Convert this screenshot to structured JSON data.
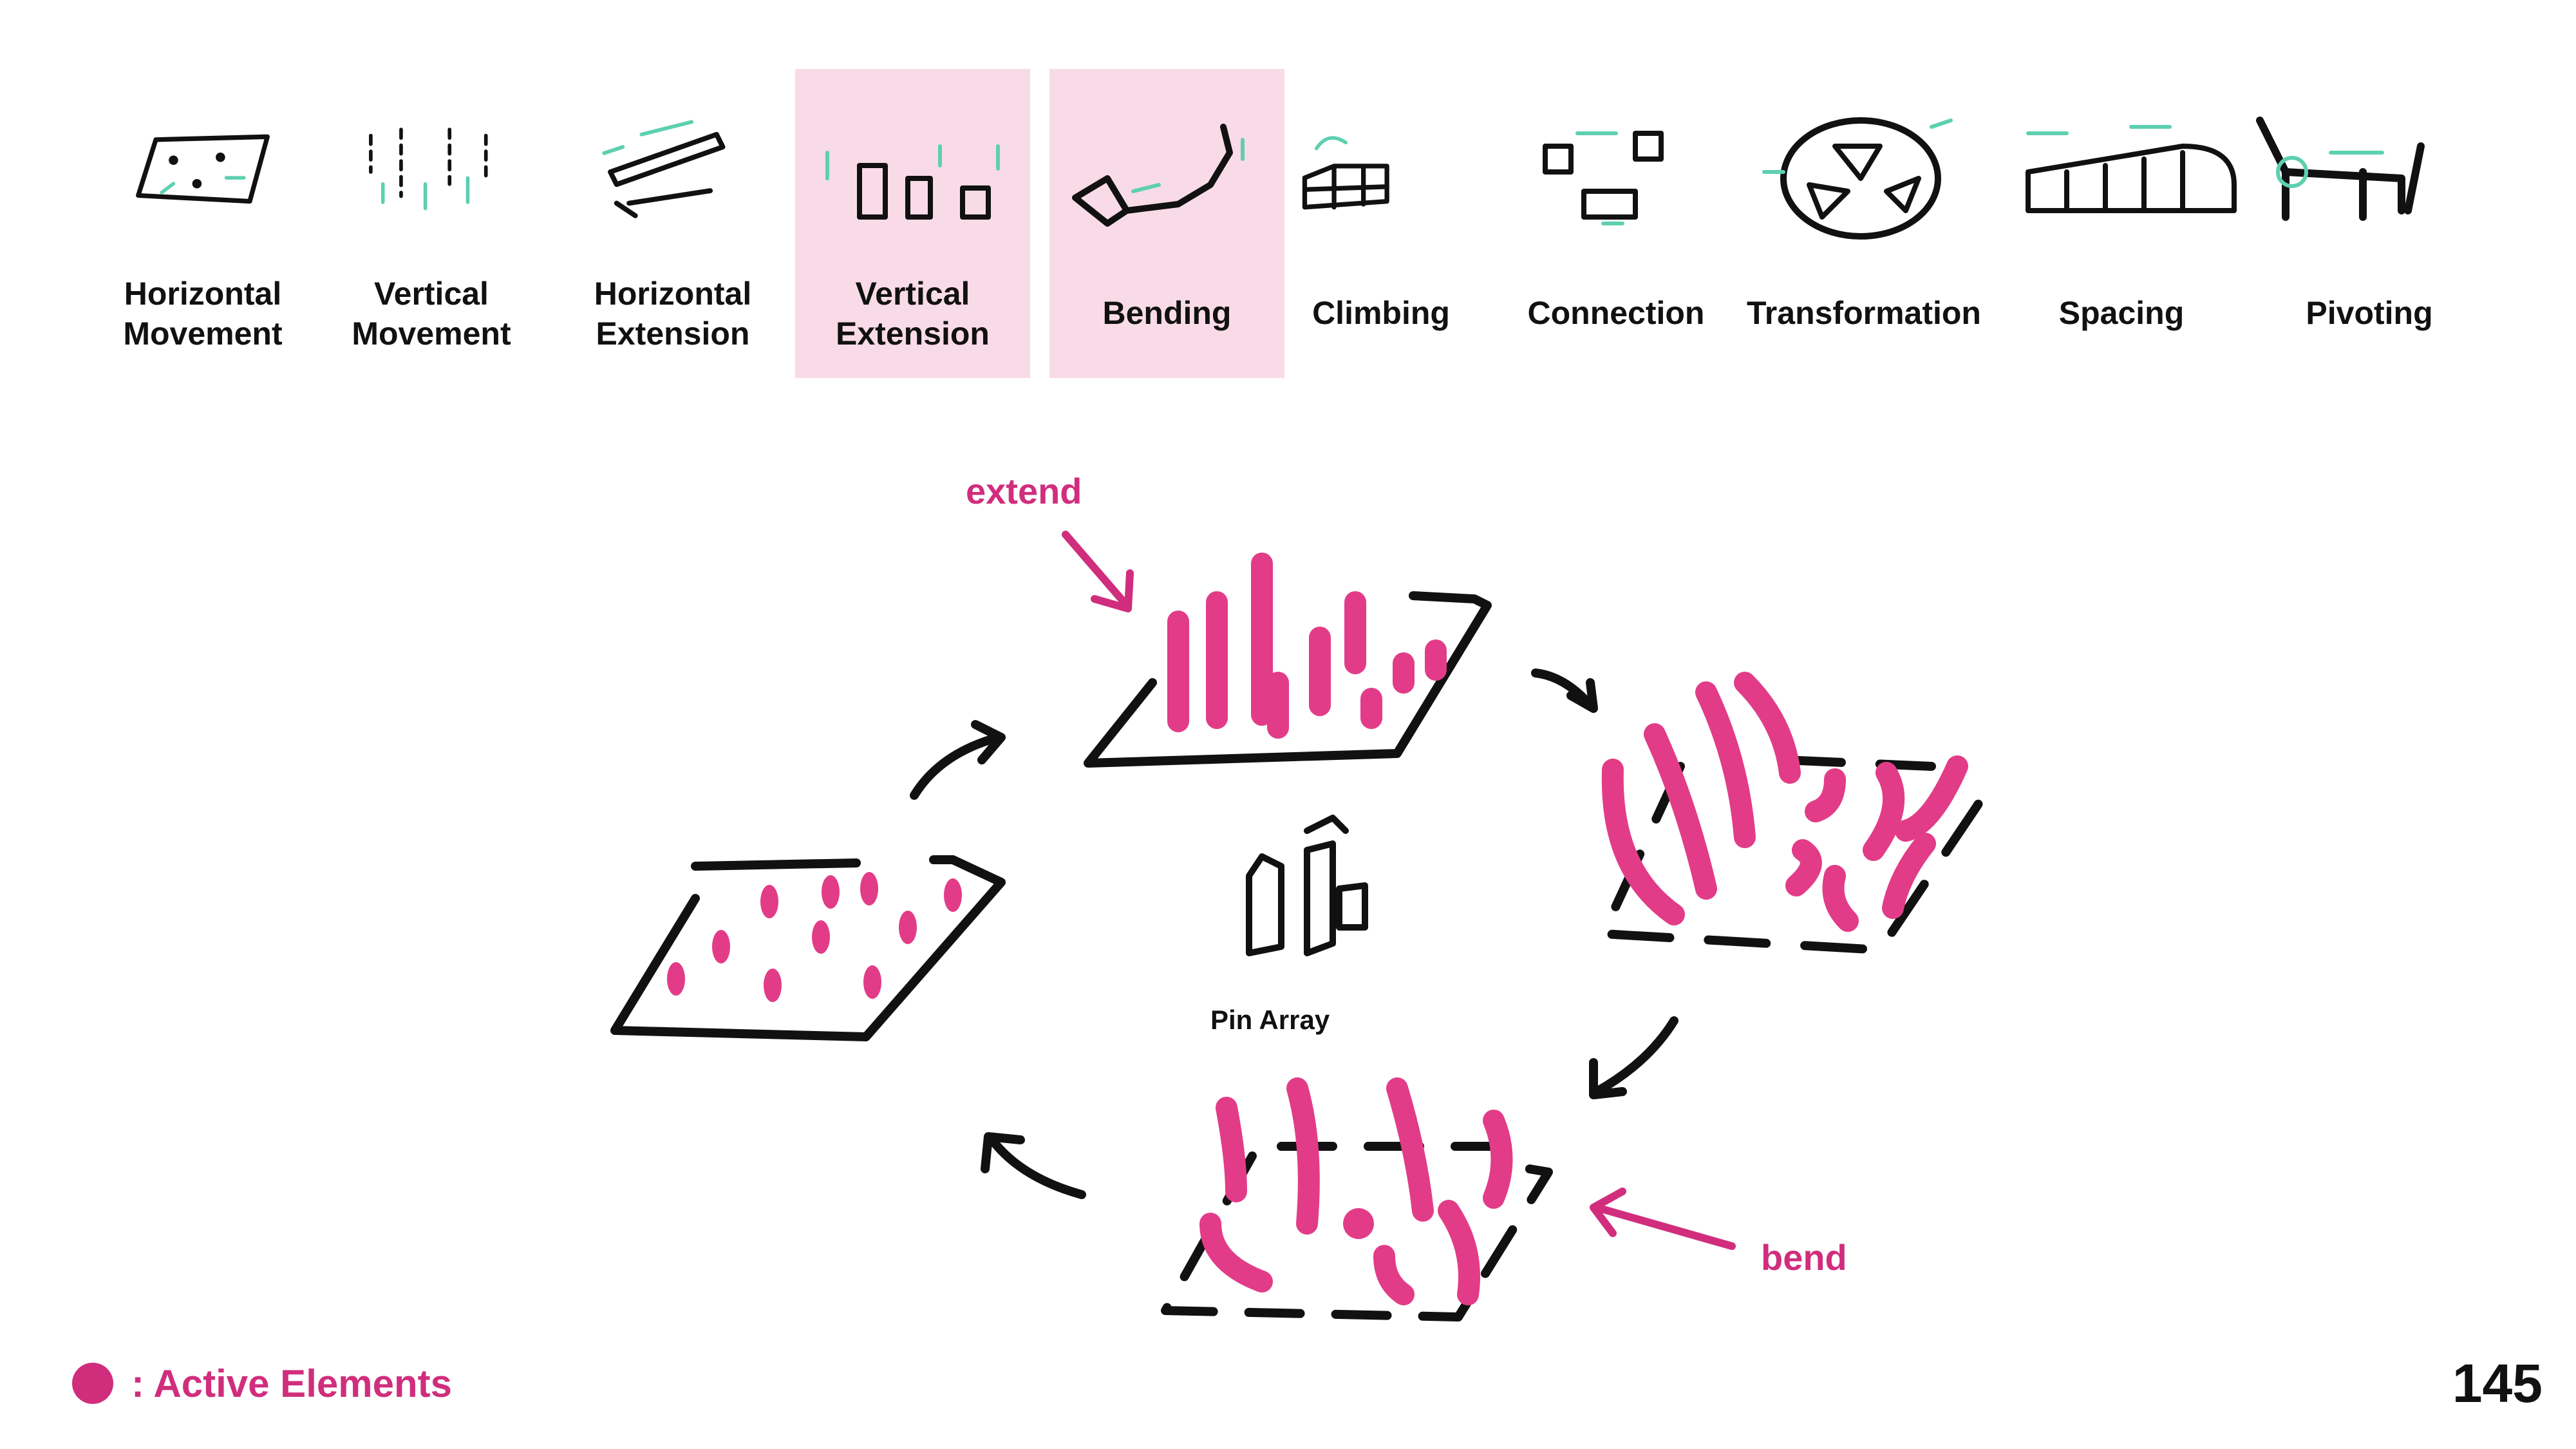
{
  "categories": [
    {
      "id": "horizontal-movement",
      "lines": [
        "Horizontal",
        "Movement"
      ],
      "highlighted": false
    },
    {
      "id": "vertical-movement",
      "lines": [
        "Vertical",
        "Movement"
      ],
      "highlighted": false
    },
    {
      "id": "horizontal-extension",
      "lines": [
        "Horizontal",
        "Extension"
      ],
      "highlighted": false
    },
    {
      "id": "vertical-extension",
      "lines": [
        "Vertical",
        "Extension"
      ],
      "highlighted": true
    },
    {
      "id": "bending",
      "lines": [
        "Bending"
      ],
      "highlighted": true
    },
    {
      "id": "climbing",
      "lines": [
        "Climbing"
      ],
      "highlighted": false
    },
    {
      "id": "connection",
      "lines": [
        "Connection"
      ],
      "highlighted": false
    },
    {
      "id": "transformation",
      "lines": [
        "Transformation"
      ],
      "highlighted": false
    },
    {
      "id": "spacing",
      "lines": [
        "Spacing"
      ],
      "highlighted": false
    },
    {
      "id": "pivoting",
      "lines": [
        "Pivoting"
      ],
      "highlighted": false
    }
  ],
  "diagram": {
    "center_label": "Pin Array",
    "extend_label": "extend",
    "bend_label": "bend"
  },
  "legend": {
    "text": ": Active Elements"
  },
  "page_number": "145",
  "colors": {
    "accent": "#d02e7d",
    "highlight": "#f9dbe7",
    "sketch": "#111111",
    "arrow": "#5ecfb1"
  }
}
